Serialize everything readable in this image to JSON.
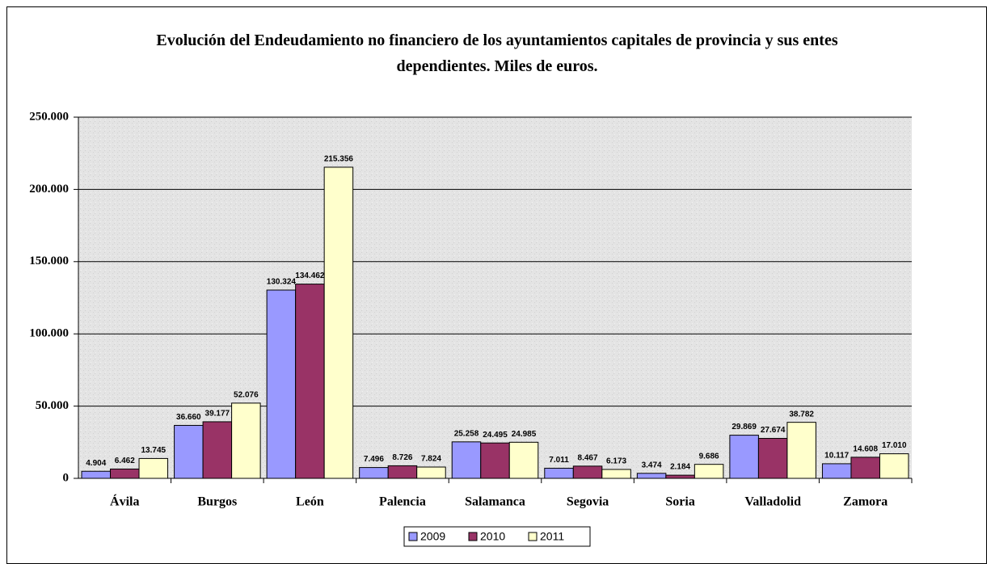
{
  "chart_data": {
    "type": "bar",
    "title": "Evolución del Endeudamiento no financiero de los ayuntamientos capitales de provincia y sus entes dependientes. Miles de euros.",
    "categories": [
      "Ávila",
      "Burgos",
      "León",
      "Palencia",
      "Salamanca",
      "Segovia",
      "Soria",
      "Valladolid",
      "Zamora"
    ],
    "series": [
      {
        "name": "2009",
        "color": "#9999ff",
        "values": [
          4904,
          36660,
          130324,
          7496,
          25258,
          7011,
          3474,
          29869,
          10117
        ],
        "value_labels": [
          "4.904",
          "36.660",
          "130.324",
          "7.496",
          "25.258",
          "7.011",
          "3.474",
          "29.869",
          "10.117"
        ]
      },
      {
        "name": "2010",
        "color": "#993366",
        "values": [
          6462,
          39177,
          134462,
          8726,
          24495,
          8467,
          2184,
          27674,
          14608
        ],
        "value_labels": [
          "6.462",
          "39.177",
          "134.462",
          "8.726",
          "24.495",
          "8.467",
          "2.184",
          "27.674",
          "14.608"
        ]
      },
      {
        "name": "2011",
        "color": "#ffffcc",
        "values": [
          13745,
          52076,
          215356,
          7824,
          24985,
          6173,
          9686,
          38782,
          17010
        ],
        "value_labels": [
          "13.745",
          "52.076",
          "215.356",
          "7.824",
          "24.985",
          "6.173",
          "9.686",
          "38.782",
          "17.010"
        ]
      }
    ],
    "ylim": [
      0,
      250000
    ],
    "yticks": [
      0,
      {
        "value": 50000,
        "label": "50.000"
      },
      {
        "value": 100000,
        "label": "100.000"
      },
      {
        "value": 150000,
        "label": "150.000"
      },
      {
        "value": 200000,
        "label": "200.000"
      },
      {
        "value": 250000,
        "label": "250.000"
      }
    ],
    "grid": true,
    "legend": "bottom"
  }
}
